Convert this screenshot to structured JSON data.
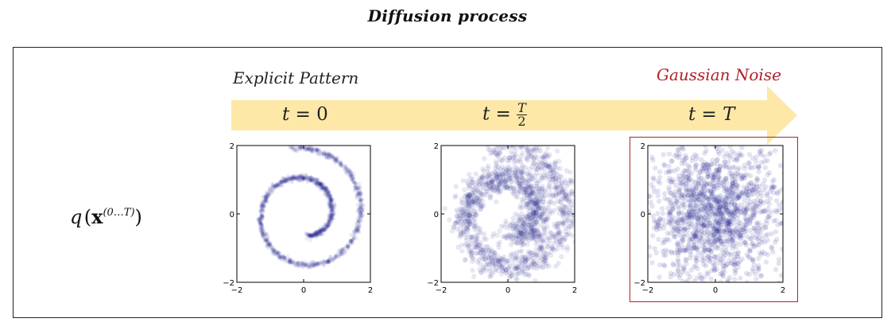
{
  "title": "Diffusion process",
  "formula": {
    "q": "q",
    "x": "x",
    "sup": "(0…T)"
  },
  "labels": {
    "explicit": "Explicit Pattern",
    "gaussian": "Gaussian Noise"
  },
  "timesteps": [
    {
      "prefix": "t = ",
      "value": "0"
    },
    {
      "prefix": "t = ",
      "num": "T",
      "den": "2"
    },
    {
      "prefix": "t = ",
      "value": "T"
    }
  ],
  "colors": {
    "arrow": "#fde8a8",
    "points": "#1b1b8a",
    "accent": "#a8282e"
  },
  "chart_data": [
    {
      "type": "scatter",
      "panel": "t=0",
      "xlim": [
        -2,
        2
      ],
      "ylim": [
        -2,
        2
      ],
      "xticks": [
        "−2",
        "0",
        "2"
      ],
      "yticks": [
        "2",
        "0",
        "−2"
      ],
      "pattern": "spiral",
      "noise_std": 0.04,
      "n_points": 1500
    },
    {
      "type": "scatter",
      "panel": "t=T/2",
      "xlim": [
        -2,
        2
      ],
      "ylim": [
        -2,
        2
      ],
      "xticks": [
        "−2",
        "0",
        "2"
      ],
      "yticks": [
        "2",
        "0",
        "−2"
      ],
      "pattern": "spiral",
      "noise_std": 0.22,
      "n_points": 1500
    },
    {
      "type": "scatter",
      "panel": "t=T",
      "xlim": [
        -2,
        2
      ],
      "ylim": [
        -2,
        2
      ],
      "xticks": [
        "−2",
        "0",
        "2"
      ],
      "yticks": [
        "2",
        "0",
        "−2"
      ],
      "pattern": "gaussian",
      "noise_std": 1.0,
      "n_points": 1500
    }
  ]
}
